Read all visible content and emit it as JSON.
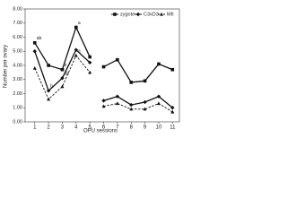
{
  "chart_data": {
    "type": "line",
    "x_label": "OPU sessions",
    "y_label": "Number per ovary",
    "x": [
      1,
      2,
      3,
      4,
      5,
      6,
      7,
      8,
      9,
      10,
      11
    ],
    "xlim": [
      0.3,
      11.5
    ],
    "xticks": [
      1,
      2,
      3,
      4,
      5,
      6,
      7,
      8,
      9,
      10,
      11
    ],
    "ylim": [
      0,
      8
    ],
    "yticks": [
      {
        "value": 0,
        "label": "0.00"
      },
      {
        "value": 1,
        "label": "1.00"
      },
      {
        "value": 2,
        "label": "2.00"
      },
      {
        "value": 3,
        "label": "3.00"
      },
      {
        "value": 4,
        "label": "4.00"
      },
      {
        "value": 5,
        "label": "5.00"
      },
      {
        "value": 6,
        "label": "6.00"
      },
      {
        "value": 7,
        "label": "7.00"
      },
      {
        "value": 8,
        "label": "8.00"
      }
    ],
    "legend": "top-right",
    "series": [
      {
        "name": "zygote",
        "color": "#111111",
        "dash": false,
        "marker": "square",
        "values": [
          5.6,
          4.0,
          3.7,
          6.7,
          4.6,
          3.9,
          4.4,
          2.8,
          2.9,
          4.1,
          3.7
        ]
      },
      {
        "name": "C3xD3",
        "color": "#111111",
        "dash": false,
        "marker": "diamond",
        "values": [
          5.0,
          2.2,
          3.1,
          5.1,
          4.2,
          1.5,
          1.8,
          1.2,
          1.4,
          1.8,
          1.0
        ]
      },
      {
        "name": "MII",
        "color": "#111111",
        "dash": true,
        "marker": "triangle",
        "values": [
          3.8,
          1.6,
          2.5,
          4.7,
          3.5,
          1.1,
          1.3,
          0.9,
          0.9,
          1.3,
          0.7
        ]
      }
    ],
    "annotations": [
      {
        "text": "ab",
        "series": 0,
        "index": 0
      },
      {
        "text": "b",
        "series": 0,
        "index": 2
      },
      {
        "text": "a",
        "series": 0,
        "index": 3
      },
      {
        "text": "b",
        "series": 1,
        "index": 1
      },
      {
        "text": "ab",
        "series": 1,
        "index": 2
      },
      {
        "text": "a",
        "series": 2,
        "index": 3
      }
    ]
  }
}
